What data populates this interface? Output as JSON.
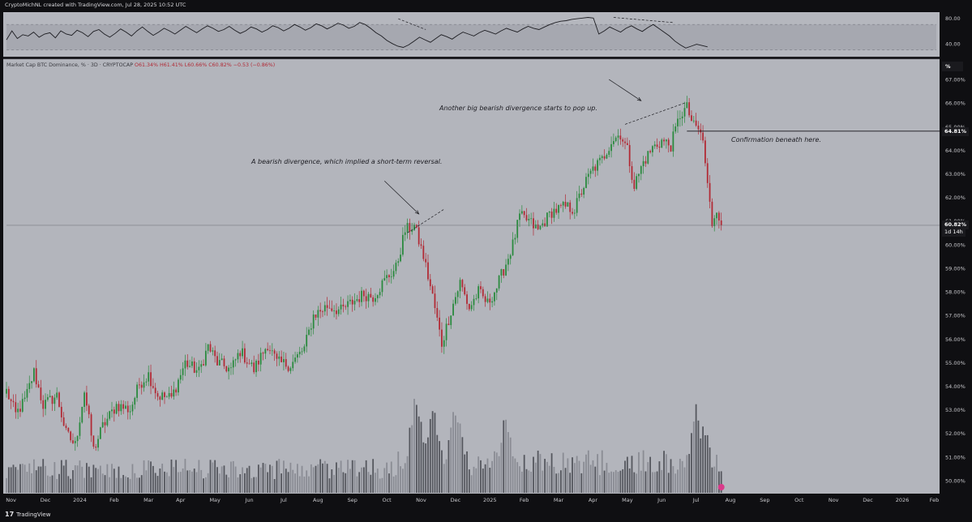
{
  "header": {
    "title": "CryptoMichNL created with TradingView.com, Jul 28, 2025 10:52 UTC"
  },
  "legend": {
    "symbol": "Market Cap BTC Dominance, % · 3D · CRYPTOCAP",
    "ohlc": "O61.34% H61.41% L60.66% C60.82% −0.53 (−0.86%)"
  },
  "footer": {
    "brand": "TradingView",
    "logo": "17"
  },
  "scale_button": "%",
  "price_badges": {
    "level": "64.81%",
    "last": "60.82%",
    "countdown": "1d 14h"
  },
  "annotations": {
    "first_divergence": "A bearish divergence, which implied a short-term reversal.",
    "second_divergence": "Another big bearish divergence starts to pop up.",
    "confirmation": "Confirmation beneath here."
  },
  "colors": {
    "up": "#2a8a3e",
    "down": "#b22a35",
    "background": "#b2b4bc",
    "volume_dark": "#55575e",
    "volume_light": "#8a8c94"
  },
  "chart_data": [
    {
      "type": "line",
      "name": "RSI",
      "ylim": [
        22,
        88
      ],
      "y_ticks": [
        "80.00",
        "40.00"
      ],
      "band": [
        30,
        70
      ],
      "x_domain": [
        0,
        306
      ],
      "y": [
        46,
        60,
        48,
        54,
        52,
        58,
        50,
        55,
        57,
        49,
        60,
        55,
        53,
        61,
        57,
        51,
        59,
        62,
        55,
        50,
        56,
        63,
        58,
        52,
        60,
        66,
        59,
        53,
        58,
        64,
        60,
        55,
        61,
        67,
        62,
        57,
        63,
        68,
        64,
        59,
        62,
        67,
        61,
        56,
        60,
        66,
        63,
        58,
        62,
        68,
        65,
        60,
        64,
        70,
        66,
        61,
        65,
        71,
        68,
        63,
        67,
        72,
        69,
        64,
        67,
        73,
        70,
        64,
        57,
        52,
        45,
        40,
        36,
        34,
        38,
        44,
        50,
        46,
        42,
        48,
        54,
        51,
        47,
        53,
        58,
        55,
        52,
        57,
        61,
        58,
        55,
        60,
        64,
        61,
        58,
        63,
        67,
        64,
        62,
        66,
        70,
        73,
        75,
        76,
        78,
        79,
        80,
        81,
        80,
        55,
        60,
        66,
        62,
        58,
        64,
        68,
        63,
        59,
        65,
        70,
        64,
        58,
        52,
        44,
        38,
        33,
        36,
        39,
        37,
        35
      ],
      "divergence_lines": [
        {
          "x": [
            171,
            183
          ],
          "y": [
            79,
            62
          ]
        },
        {
          "x": [
            265,
            291
          ],
          "y": [
            81,
            73
          ]
        }
      ]
    },
    {
      "type": "candlestick",
      "name": "Market Cap BTC Dominance, % · 3D · CRYPTOCAP",
      "ylim": [
        49.55,
        67.45
      ],
      "y_ticks": [
        "50.00%",
        "51.00%",
        "52.00%",
        "53.00%",
        "54.00%",
        "55.00%",
        "56.00%",
        "57.00%",
        "58.00%",
        "59.00%",
        "60.00%",
        "61.00%",
        "62.00%",
        "63.00%",
        "64.00%",
        "65.00%",
        "66.00%",
        "67.00%"
      ],
      "x_domain": [
        0,
        388
      ],
      "x_tick_labels": [
        {
          "label": "Nov",
          "x": 2
        },
        {
          "label": "Dec",
          "x": 17
        },
        {
          "label": "2024",
          "x": 32
        },
        {
          "label": "Feb",
          "x": 47
        },
        {
          "label": "Mar",
          "x": 62
        },
        {
          "label": "Apr",
          "x": 76
        },
        {
          "label": "May",
          "x": 91
        },
        {
          "label": "Jun",
          "x": 106
        },
        {
          "label": "Jul",
          "x": 121
        },
        {
          "label": "Aug",
          "x": 136
        },
        {
          "label": "Sep",
          "x": 151
        },
        {
          "label": "Oct",
          "x": 166
        },
        {
          "label": "Nov",
          "x": 181
        },
        {
          "label": "Dec",
          "x": 196
        },
        {
          "label": "2025",
          "x": 211
        },
        {
          "label": "Feb",
          "x": 226
        },
        {
          "label": "Mar",
          "x": 241
        },
        {
          "label": "Apr",
          "x": 256
        },
        {
          "label": "May",
          "x": 271
        },
        {
          "label": "Jun",
          "x": 286
        },
        {
          "label": "Jul",
          "x": 301
        },
        {
          "label": "Aug",
          "x": 316
        },
        {
          "label": "Sep",
          "x": 331
        },
        {
          "label": "Oct",
          "x": 346
        },
        {
          "label": "Nov",
          "x": 361
        },
        {
          "label": "Dec",
          "x": 376
        },
        {
          "label": "2026",
          "x": 391
        },
        {
          "label": "Feb",
          "x": 405
        }
      ],
      "anchors": [
        [
          0,
          53.8
        ],
        [
          4,
          52.8
        ],
        [
          8,
          53.4
        ],
        [
          12,
          54.6
        ],
        [
          16,
          53.2
        ],
        [
          22,
          53.6
        ],
        [
          26,
          52.0
        ],
        [
          30,
          51.5
        ],
        [
          34,
          53.8
        ],
        [
          38,
          51.3
        ],
        [
          42,
          52.3
        ],
        [
          48,
          53.2
        ],
        [
          54,
          53.0
        ],
        [
          58,
          54.1
        ],
        [
          62,
          54.5
        ],
        [
          66,
          53.6
        ],
        [
          72,
          53.5
        ],
        [
          78,
          55.0
        ],
        [
          84,
          54.6
        ],
        [
          88,
          55.7
        ],
        [
          92,
          55.0
        ],
        [
          98,
          54.7
        ],
        [
          102,
          55.5
        ],
        [
          108,
          54.7
        ],
        [
          114,
          55.8
        ],
        [
          118,
          55.0
        ],
        [
          124,
          54.9
        ],
        [
          130,
          55.6
        ],
        [
          134,
          57.0
        ],
        [
          140,
          57.4
        ],
        [
          146,
          57.2
        ],
        [
          150,
          57.5
        ],
        [
          156,
          57.9
        ],
        [
          160,
          57.8
        ],
        [
          166,
          58.6
        ],
        [
          170,
          59.0
        ],
        [
          174,
          60.6
        ],
        [
          178,
          60.8
        ],
        [
          182,
          59.5
        ],
        [
          186,
          57.8
        ],
        [
          190,
          55.8
        ],
        [
          194,
          57.2
        ],
        [
          198,
          58.4
        ],
        [
          202,
          57.3
        ],
        [
          206,
          58.0
        ],
        [
          210,
          57.5
        ],
        [
          214,
          58.2
        ],
        [
          218,
          59.2
        ],
        [
          221,
          60.0
        ],
        [
          224,
          61.2
        ],
        [
          228,
          61.0
        ],
        [
          232,
          60.6
        ],
        [
          238,
          61.4
        ],
        [
          244,
          61.6
        ],
        [
          248,
          61.5
        ],
        [
          252,
          62.5
        ],
        [
          256,
          63.2
        ],
        [
          260,
          63.6
        ],
        [
          264,
          64.4
        ],
        [
          268,
          64.7
        ],
        [
          271,
          64.0
        ],
        [
          274,
          62.5
        ],
        [
          278,
          63.5
        ],
        [
          282,
          64.1
        ],
        [
          286,
          64.4
        ],
        [
          290,
          64.2
        ],
        [
          294,
          65.5
        ],
        [
          297,
          65.8
        ],
        [
          300,
          65.0
        ],
        [
          302,
          64.9
        ],
        [
          304,
          64.4
        ],
        [
          306,
          62.5
        ],
        [
          308,
          60.9
        ],
        [
          310,
          61.6
        ],
        [
          312,
          60.82
        ]
      ],
      "volume": {
        "seed": 7,
        "peaks": [
          {
            "x": 179,
            "level": 0.8
          },
          {
            "x": 186,
            "level": 0.7
          },
          {
            "x": 196,
            "level": 0.7
          },
          {
            "x": 218,
            "level": 0.6
          },
          {
            "x": 301,
            "level": 0.6
          },
          {
            "x": 304,
            "level": 0.55
          }
        ]
      },
      "horizontal_level": 64.81,
      "last_close": 60.82,
      "divergence_lines": [
        {
          "x": [
            175,
            191
          ],
          "y": [
            60.5,
            61.5
          ]
        },
        {
          "x": [
            270,
            296
          ],
          "y": [
            65.1,
            66.0
          ]
        }
      ],
      "arrows": [
        {
          "from": [
            165,
            62.7
          ],
          "to": [
            180,
            61.3
          ]
        },
        {
          "from": [
            263,
            67.0
          ],
          "to": [
            277,
            66.1
          ]
        }
      ]
    }
  ]
}
